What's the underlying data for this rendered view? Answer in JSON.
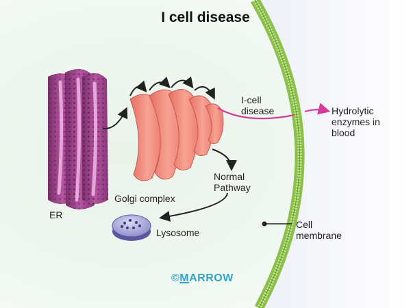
{
  "title": "I cell disease",
  "labels": {
    "er": "ER",
    "golgi": "Golgi complex",
    "icell_line1": "I-cell",
    "icell_line2": "disease",
    "normal_line1": "Normal",
    "normal_line2": "Pathway",
    "lysosome": "Lysosome",
    "hydro_line1": "Hydrolytic",
    "hydro_line2": "enzymes in",
    "hydro_line3": "blood",
    "cell_line1": "Cell",
    "cell_line2": "membrane"
  },
  "watermark": {
    "symbol": "©",
    "initial": "M",
    "rest": "ARROW"
  },
  "colors": {
    "er_fill": "#9b3f86",
    "golgi_fill": "#f08a7b",
    "membrane": "#8cc04a",
    "icell_arrow": "#d63a9a",
    "arrow": "#222222",
    "lysosome": "#6f6cb4",
    "watermark": "#2fa6c7"
  }
}
